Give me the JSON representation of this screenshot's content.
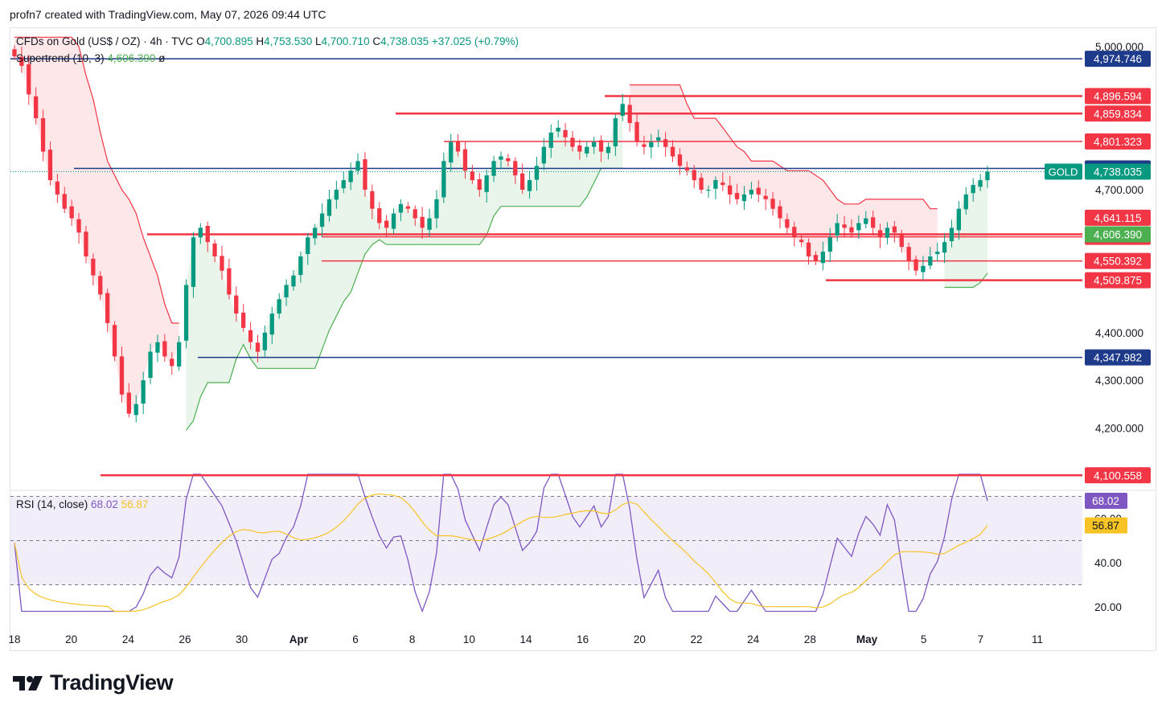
{
  "header": {
    "credit": "profn7 created with TradingView.com, May 07, 2026 09:44 UTC"
  },
  "legend": {
    "symbol": "CFDs on Gold (US$ / OZ) · 4h · TVC",
    "open_label": "O",
    "open": "4,700.895",
    "high_label": "H",
    "high": "4,753.530",
    "low_label": "L",
    "low": "4,700.710",
    "close_label": "C",
    "close": "4,738.035",
    "change": "+37.025 (+0.79%)",
    "supertrend_label": "Supertrend (10, 3)",
    "supertrend_value": "4,606.390",
    "supertrend_extra": "ø",
    "rsi_label": "RSI (14, close)",
    "rsi_value": "68.02",
    "rsi_ma_value": "56.87"
  },
  "colors": {
    "up": "#089981",
    "down": "#f23645",
    "bullish_st": "#4caf50",
    "bearish_st": "#f23645",
    "blue_line": "#2962ff",
    "navy_line": "#1e3a8a",
    "rsi": "#7e57c2",
    "rsi_ma": "#f7c325"
  },
  "brand": {
    "logo_icon": "tradingview-logo-icon",
    "name": "TradingView"
  },
  "chart_data": {
    "type": "candlestick",
    "symbol_tag": "GOLD",
    "price_axis": {
      "ticks": [
        "5,000.000",
        "4,700.000",
        "4,400.000",
        "4,300.000",
        "4,200.000"
      ],
      "tick_values": [
        5000,
        4700,
        4400,
        4300,
        4200
      ],
      "range": [
        4080,
        5040
      ]
    },
    "time_axis": {
      "labels": [
        "18",
        "20",
        "24",
        "26",
        "30",
        "Apr",
        "6",
        "8",
        "10",
        "14",
        "16",
        "20",
        "22",
        "24",
        "28",
        "May",
        "5",
        "7",
        "11"
      ]
    },
    "horizontal_levels": [
      {
        "value": 4974.746,
        "label": "4,974.746",
        "color": "#1e3a8a",
        "style": "line"
      },
      {
        "value": 4896.594,
        "label": "4,896.594",
        "color": "#f23645",
        "style": "ray"
      },
      {
        "value": 4859.834,
        "label": "4,859.834",
        "color": "#f23645",
        "style": "ray"
      },
      {
        "value": 4801.323,
        "label": "4,801.323",
        "color": "#f23645",
        "style": "ray"
      },
      {
        "value": 4744.739,
        "label": "4,744.739",
        "color": "#1e3a8a",
        "style": "ray"
      },
      {
        "value": 4641.115,
        "label": "4,641.115",
        "color": "#f23645",
        "style": "tag"
      },
      {
        "value": 4606.39,
        "label": "4,606.390",
        "color": "#f23645",
        "style": "ray"
      },
      {
        "value": 4601.042,
        "label": "4,601.042",
        "color": "#f23645",
        "style": "ray"
      },
      {
        "value": 4550.392,
        "label": "4,550.392",
        "color": "#f23645",
        "style": "ray"
      },
      {
        "value": 4509.875,
        "label": "4,509.875",
        "color": "#f23645",
        "style": "ray"
      },
      {
        "value": 4347.982,
        "label": "4,347.982",
        "color": "#1e3a8a",
        "style": "ray"
      },
      {
        "value": 4100.558,
        "label": "4,100.558",
        "color": "#f23645",
        "style": "ray"
      }
    ],
    "last_price": {
      "value": 4738.035,
      "label": "4,738.035"
    },
    "supertrend_last": {
      "value": 4606.39,
      "label": "4,606.390"
    },
    "close_series_approx": [
      4980,
      4960,
      4900,
      4850,
      4780,
      4720,
      4690,
      4660,
      4640,
      4610,
      4560,
      4520,
      4480,
      4420,
      4350,
      4270,
      4230,
      4250,
      4300,
      4360,
      4380,
      4350,
      4330,
      4380,
      4500,
      4600,
      4620,
      4590,
      4560,
      4530,
      4480,
      4440,
      4410,
      4380,
      4360,
      4400,
      4440,
      4470,
      4500,
      4520,
      4560,
      4600,
      4620,
      4650,
      4680,
      4700,
      4720,
      4740,
      4760,
      4700,
      4660,
      4630,
      4620,
      4650,
      4670,
      4660,
      4640,
      4620,
      4640,
      4680,
      4760,
      4800,
      4780,
      4740,
      4720,
      4700,
      4730,
      4760,
      4770,
      4760,
      4730,
      4700,
      4720,
      4750,
      4790,
      4820,
      4830,
      4810,
      4790,
      4780,
      4790,
      4800,
      4780,
      4790,
      4850,
      4880,
      4840,
      4800,
      4790,
      4800,
      4810,
      4790,
      4770,
      4750,
      4740,
      4720,
      4700,
      4700,
      4720,
      4710,
      4690,
      4680,
      4690,
      4700,
      4690,
      4680,
      4660,
      4640,
      4620,
      4600,
      4590,
      4560,
      4550,
      4570,
      4600,
      4630,
      4620,
      4610,
      4630,
      4640,
      4620,
      4600,
      4620,
      4610,
      4580,
      4550,
      4530,
      4540,
      4560,
      4570,
      4590,
      4620,
      4660,
      4690,
      4710,
      4720,
      4738
    ],
    "rsi": {
      "type": "line",
      "name": "RSI (14, close)",
      "last": 68.02,
      "ma_last": 56.87,
      "ticks": [
        "68.02",
        "60.00",
        "40.00",
        "20.00"
      ],
      "range": [
        10,
        85
      ],
      "band": [
        30,
        70
      ]
    }
  }
}
